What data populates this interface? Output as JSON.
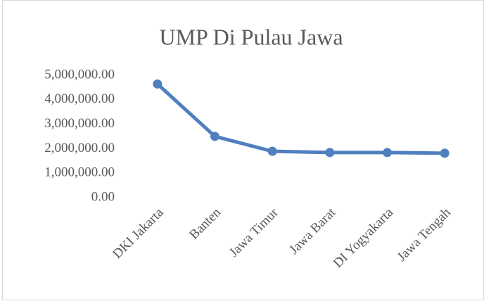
{
  "chart_data": {
    "type": "line",
    "title": "UMP Di Pulau Jawa",
    "categories": [
      "DKI Jakarta",
      "Banten",
      "Jawa Timur",
      "Jawa Barat",
      "DI Yogyakarta",
      "Jawa Tengah"
    ],
    "series": [
      {
        "name": "UMP",
        "color": "#4f7fbf",
        "values": [
          4641854,
          2501203,
          1891567,
          1841487,
          1840915,
          1812935
        ]
      }
    ],
    "ylim": [
      0,
      5000000
    ],
    "yticks": [
      {
        "value": 0,
        "label": "0.00"
      },
      {
        "value": 1000000,
        "label": "1,000,000.00"
      },
      {
        "value": 2000000,
        "label": "2,000,000.00"
      },
      {
        "value": 3000000,
        "label": "3,000,000.00"
      },
      {
        "value": 4000000,
        "label": "4,000,000.00"
      },
      {
        "value": 5000000,
        "label": "5,000,000.00"
      }
    ],
    "grid": false
  }
}
